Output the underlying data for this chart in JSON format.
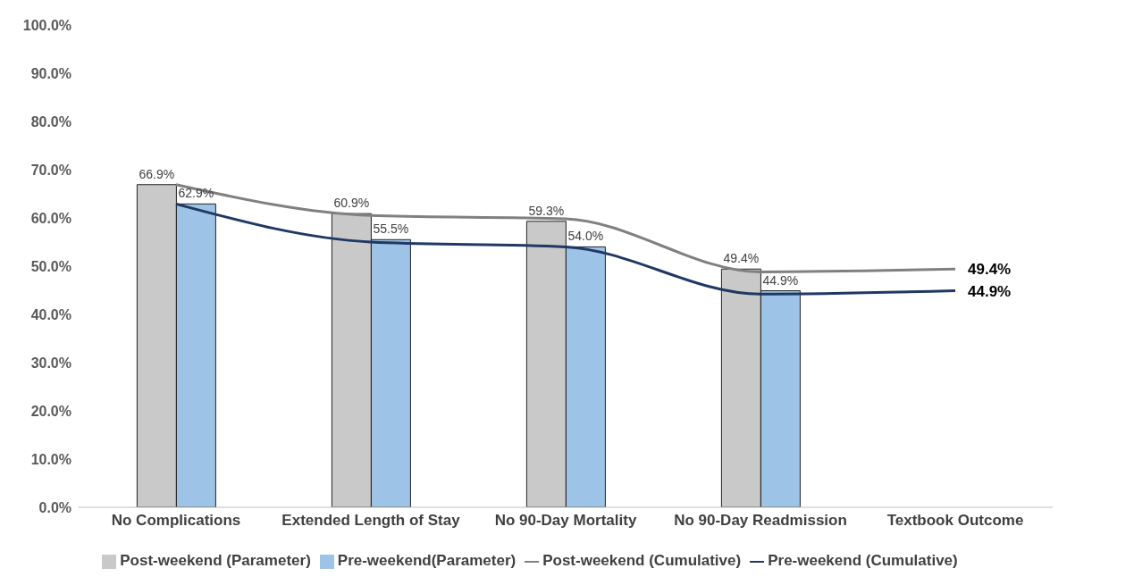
{
  "chart_data": {
    "type": "bar",
    "categories": [
      "No Complications",
      "Extended Length of Stay",
      "No 90-Day Mortality",
      "No 90-Day Readmission",
      "Textbook Outcome"
    ],
    "series": [
      {
        "name": "Post-weekend (Parameter)",
        "color": "#c9c9c9",
        "values": [
          66.9,
          60.9,
          59.3,
          49.4,
          null
        ],
        "value_labels": [
          "66.9%",
          "60.9%",
          "59.3%",
          "49.4%",
          null
        ]
      },
      {
        "name": "Pre-weekend(Parameter)",
        "color": "#9dc3e6",
        "values": [
          62.9,
          55.5,
          54.0,
          44.9,
          null
        ],
        "value_labels": [
          "62.9%",
          "55.5%",
          "54.0%",
          "44.9%",
          null
        ]
      },
      {
        "name": "Post-weekend (Cumulative)",
        "type": "line",
        "color": "#808080",
        "values": [
          66.9,
          60.5,
          59.8,
          48.8,
          49.4
        ],
        "value_labels": [
          null,
          null,
          null,
          null,
          "49.4%"
        ]
      },
      {
        "name": "Pre-weekend (Cumulative)",
        "type": "line",
        "color": "#1f3864",
        "values": [
          62.9,
          55.0,
          54.0,
          44.2,
          44.9
        ],
        "value_labels": [
          null,
          null,
          null,
          null,
          "44.9%"
        ]
      }
    ],
    "ylim": [
      0,
      100
    ],
    "yticks": [
      {
        "value": 0,
        "label": "0.0%"
      },
      {
        "value": 10,
        "label": "10.0%"
      },
      {
        "value": 20,
        "label": "20.0%"
      },
      {
        "value": 30,
        "label": "30.0%"
      },
      {
        "value": 40,
        "label": "40.0%"
      },
      {
        "value": 50,
        "label": "50.0%"
      },
      {
        "value": 60,
        "label": "60.0%"
      },
      {
        "value": 70,
        "label": "70.0%"
      },
      {
        "value": 80,
        "label": "80.0%"
      },
      {
        "value": 90,
        "label": "90.0%"
      },
      {
        "value": 100,
        "label": "100.0%"
      }
    ],
    "grid": false,
    "legend": "bottom",
    "marker": "none"
  }
}
